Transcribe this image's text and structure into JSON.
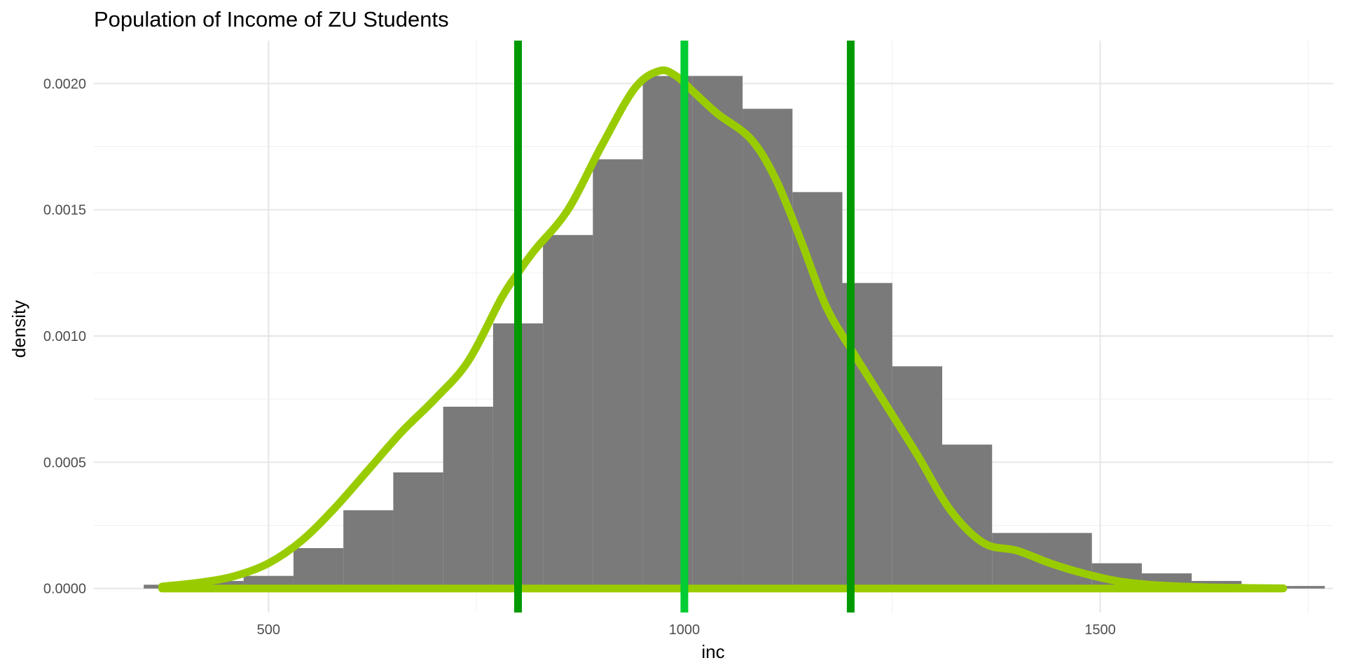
{
  "chart_data": {
    "type": "bar",
    "title": "Population of Income of ZU Students",
    "xlabel": "inc",
    "ylabel": "density",
    "xlim": [
      290,
      1780
    ],
    "ylim": [
      -9.5e-05,
      0.00217
    ],
    "grid": true,
    "x_ticks": [
      500,
      1000,
      1500
    ],
    "x_tick_labels": [
      "500",
      "1000",
      "1500"
    ],
    "y_ticks": [
      0,
      0.0005,
      0.001,
      0.0015,
      0.002
    ],
    "y_tick_labels": [
      "0.0000",
      "0.0005",
      "0.0010",
      "0.0015",
      "0.0020"
    ],
    "histogram": {
      "color": "#7a7a7a",
      "bins": [
        {
          "x0": 350,
          "x1": 410,
          "value": 1.5e-05
        },
        {
          "x0": 410,
          "x1": 470,
          "value": 3e-05
        },
        {
          "x0": 470,
          "x1": 530,
          "value": 5e-05
        },
        {
          "x0": 530,
          "x1": 590,
          "value": 0.00016
        },
        {
          "x0": 590,
          "x1": 650,
          "value": 0.00031
        },
        {
          "x0": 650,
          "x1": 710,
          "value": 0.00046
        },
        {
          "x0": 710,
          "x1": 770,
          "value": 0.00072
        },
        {
          "x0": 770,
          "x1": 830,
          "value": 0.00105
        },
        {
          "x0": 830,
          "x1": 890,
          "value": 0.0014
        },
        {
          "x0": 890,
          "x1": 950,
          "value": 0.0017
        },
        {
          "x0": 950,
          "x1": 1010,
          "value": 0.00203
        },
        {
          "x0": 1010,
          "x1": 1070,
          "value": 0.00203
        },
        {
          "x0": 1070,
          "x1": 1130,
          "value": 0.0019
        },
        {
          "x0": 1130,
          "x1": 1190,
          "value": 0.00157
        },
        {
          "x0": 1190,
          "x1": 1250,
          "value": 0.00121
        },
        {
          "x0": 1250,
          "x1": 1310,
          "value": 0.00088
        },
        {
          "x0": 1310,
          "x1": 1370,
          "value": 0.00057
        },
        {
          "x0": 1370,
          "x1": 1430,
          "value": 0.00022
        },
        {
          "x0": 1430,
          "x1": 1490,
          "value": 0.00022
        },
        {
          "x0": 1490,
          "x1": 1550,
          "value": 0.0001
        },
        {
          "x0": 1550,
          "x1": 1610,
          "value": 6e-05
        },
        {
          "x0": 1610,
          "x1": 1670,
          "value": 3e-05
        },
        {
          "x0": 1670,
          "x1": 1730,
          "value": 1e-05
        },
        {
          "x0": 1730,
          "x1": 1770,
          "value": 1e-05
        }
      ]
    },
    "density": {
      "color": "#99cc00",
      "x": [
        372,
        420,
        460,
        500,
        540,
        580,
        620,
        660,
        700,
        740,
        780,
        800,
        820,
        860,
        900,
        940,
        970,
        990,
        1010,
        1040,
        1080,
        1110,
        1140,
        1170,
        1200,
        1240,
        1280,
        1320,
        1360,
        1400,
        1440,
        1480,
        1520,
        1560,
        1600,
        1640,
        1680,
        1720
      ],
      "y": [
        8e-06,
        2.5e-05,
        5e-05,
        0.0001,
        0.00019,
        0.00032,
        0.00047,
        0.00062,
        0.00075,
        0.0009,
        0.00115,
        0.00125,
        0.00134,
        0.0015,
        0.00175,
        0.00198,
        0.00205,
        0.00203,
        0.00197,
        0.00188,
        0.00178,
        0.00162,
        0.00138,
        0.00112,
        0.00095,
        0.00074,
        0.00053,
        0.00031,
        0.00018,
        0.00015,
        0.0001,
        6e-05,
        3e-05,
        1.5e-05,
        8e-06,
        4e-06,
        2e-06,
        1e-06
      ]
    },
    "vlines": [
      {
        "x": 800,
        "color": "#009900"
      },
      {
        "x": 1000,
        "color": "#00cc33"
      },
      {
        "x": 1200,
        "color": "#009900"
      }
    ]
  }
}
